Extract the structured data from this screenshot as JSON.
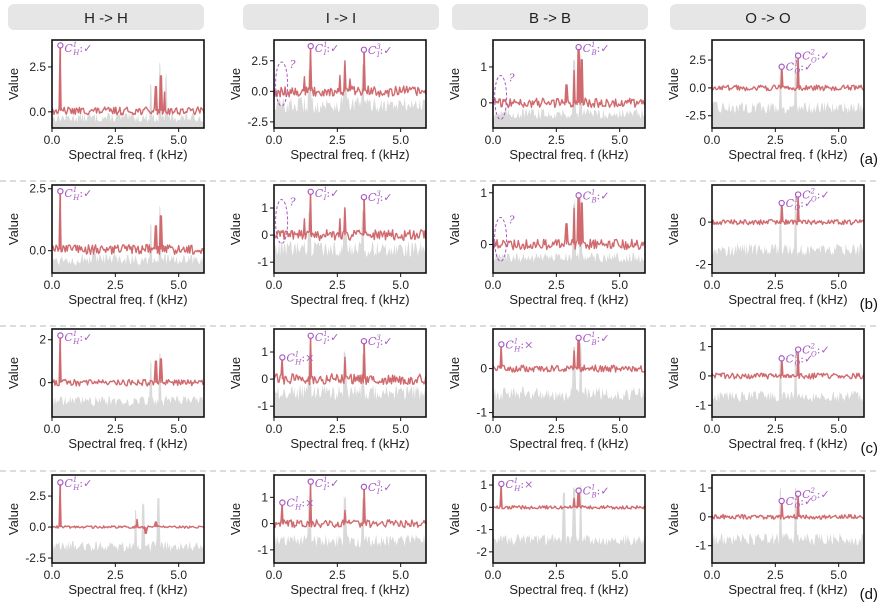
{
  "columns": [
    "H -> H",
    "I -> I",
    "B -> B",
    "O -> O"
  ],
  "rows": [
    "(a)",
    "(b)",
    "(c)",
    "(d)"
  ],
  "xlabel": "Spectral freq. f (kHz)",
  "ylabel": "Value",
  "colors": {
    "signal": "#d06a6e",
    "background": "#d9d9d9",
    "marker": "#a65bc2",
    "header_bg": "#e6e6e6",
    "divider": "#b8b8b8"
  },
  "chart_data": {
    "type": "line",
    "x_range_khz": [
      0,
      6
    ],
    "x_ticks": [
      0.0,
      2.5,
      5.0
    ],
    "x_tick_labels": [
      "0.0",
      "2.5",
      "5.0"
    ],
    "panels": [
      {
        "row": "(a)",
        "col": "H -> H",
        "ylim": [
          -0.9,
          4.0
        ],
        "yticks": [
          0.0,
          2.5
        ],
        "ytick_labels": [
          "0.0",
          "2.5"
        ],
        "baseline": 0.05,
        "noise": 0.22,
        "bgBase": -0.6,
        "bgAmp": 0.55,
        "peaks": [
          {
            "f": 0.33,
            "v": 3.7
          },
          {
            "f": 4.1,
            "v": 1.4
          },
          {
            "f": 4.3,
            "v": 2.0
          },
          {
            "f": 4.45,
            "v": 1.1
          }
        ],
        "bgPeaks": [
          {
            "f": 3.9,
            "v": 1.7
          },
          {
            "f": 4.25,
            "v": 3.2
          },
          {
            "f": 4.5,
            "v": 2.2
          }
        ],
        "annotations": [
          {
            "label": "C_H^1:✓",
            "f": 0.33,
            "v": 3.7
          }
        ],
        "guesses": []
      },
      {
        "row": "(a)",
        "col": "I -> I",
        "ylim": [
          -3.0,
          4.2
        ],
        "yticks": [
          -2.5,
          0.0,
          2.5
        ],
        "ytick_labels": [
          "-2.5",
          "0.0",
          "2.5"
        ],
        "baseline": 0.0,
        "noise": 0.45,
        "bgBase": -1.8,
        "bgAmp": 1.4,
        "peaks": [
          {
            "f": 1.2,
            "v": 1.2
          },
          {
            "f": 1.45,
            "v": 3.7
          },
          {
            "f": 2.6,
            "v": 1.3
          },
          {
            "f": 2.8,
            "v": 2.5
          },
          {
            "f": 3.0,
            "v": 1.0
          },
          {
            "f": 3.55,
            "v": 3.4
          }
        ],
        "bgPeaks": [
          {
            "f": 1.4,
            "v": 2.0
          },
          {
            "f": 2.8,
            "v": 2.5
          },
          {
            "f": 3.5,
            "v": 2.3
          }
        ],
        "annotations": [
          {
            "label": "C_I^1:✓",
            "f": 1.45,
            "v": 3.7
          },
          {
            "label": "C_I^3:✓",
            "f": 3.55,
            "v": 3.4
          }
        ],
        "guesses": [
          {
            "f": 0.3,
            "v": 0.6
          }
        ]
      },
      {
        "row": "(a)",
        "col": "B -> B",
        "ylim": [
          -0.7,
          1.75
        ],
        "yticks": [
          0,
          1
        ],
        "ytick_labels": [
          "0",
          "1"
        ],
        "baseline": 0.0,
        "noise": 0.13,
        "bgBase": -0.45,
        "bgAmp": 0.3,
        "peaks": [
          {
            "f": 2.9,
            "v": 0.5
          },
          {
            "f": 3.2,
            "v": 0.9
          },
          {
            "f": 3.38,
            "v": 1.55
          },
          {
            "f": 3.5,
            "v": 1.2
          }
        ],
        "bgPeaks": [
          {
            "f": 3.2,
            "v": 1.3
          },
          {
            "f": 3.45,
            "v": 1.6
          }
        ],
        "annotations": [
          {
            "label": "C_B^1:✓",
            "f": 3.38,
            "v": 1.55
          }
        ],
        "guesses": [
          {
            "f": 0.3,
            "v": 0.15
          }
        ]
      },
      {
        "row": "(a)",
        "col": "O -> O",
        "ylim": [
          -3.6,
          4.3
        ],
        "yticks": [
          -2.5,
          0.0,
          2.5
        ],
        "ytick_labels": [
          "-2.5",
          "0.0",
          "2.5"
        ],
        "baseline": 0.0,
        "noise": 0.25,
        "bgBase": -2.3,
        "bgAmp": 1.1,
        "peaks": [
          {
            "f": 2.75,
            "v": 1.9
          },
          {
            "f": 3.4,
            "v": 2.9
          }
        ],
        "bgPeaks": [
          {
            "f": 2.7,
            "v": 2.0
          },
          {
            "f": 3.3,
            "v": 3.5
          }
        ],
        "annotations": [
          {
            "label": "C_O^1:✓",
            "f": 2.75,
            "v": 1.9
          },
          {
            "label": "C_O^2:✓",
            "f": 3.4,
            "v": 2.9
          }
        ],
        "guesses": []
      },
      {
        "row": "(b)",
        "col": "H -> H",
        "ylim": [
          -0.9,
          2.65
        ],
        "yticks": [
          0.0,
          2.5
        ],
        "ytick_labels": [
          "0.0",
          "2.5"
        ],
        "baseline": 0.05,
        "noise": 0.2,
        "bgBase": -0.6,
        "bgAmp": 0.5,
        "peaks": [
          {
            "f": 0.33,
            "v": 2.4
          },
          {
            "f": 4.1,
            "v": 1.0
          },
          {
            "f": 4.3,
            "v": 1.4
          }
        ],
        "bgPeaks": [
          {
            "f": 3.9,
            "v": 1.2
          },
          {
            "f": 4.25,
            "v": 2.1
          }
        ],
        "annotations": [
          {
            "label": "C_H^1:✓",
            "f": 0.33,
            "v": 2.4
          }
        ],
        "guesses": []
      },
      {
        "row": "(b)",
        "col": "I -> I",
        "ylim": [
          -1.4,
          1.85
        ],
        "yticks": [
          -1,
          0,
          1
        ],
        "ytick_labels": [
          "-1",
          "0",
          "1"
        ],
        "baseline": 0.0,
        "noise": 0.2,
        "bgBase": -0.8,
        "bgAmp": 0.6,
        "peaks": [
          {
            "f": 1.2,
            "v": 0.6
          },
          {
            "f": 1.45,
            "v": 1.6
          },
          {
            "f": 2.6,
            "v": 0.6
          },
          {
            "f": 2.8,
            "v": 1.0
          },
          {
            "f": 3.55,
            "v": 1.4
          }
        ],
        "bgPeaks": [
          {
            "f": 1.4,
            "v": 1.0
          },
          {
            "f": 2.8,
            "v": 1.1
          },
          {
            "f": 3.5,
            "v": 1.0
          }
        ],
        "annotations": [
          {
            "label": "C_I^1:✓",
            "f": 1.45,
            "v": 1.6
          },
          {
            "label": "C_I^3:✓",
            "f": 3.55,
            "v": 1.4
          }
        ],
        "guesses": [
          {
            "f": 0.3,
            "v": 0.5
          }
        ]
      },
      {
        "row": "(b)",
        "col": "B -> B",
        "ylim": [
          -0.55,
          1.15
        ],
        "yticks": [
          0,
          1
        ],
        "ytick_labels": [
          "0",
          "1"
        ],
        "baseline": 0.0,
        "noise": 0.1,
        "bgBase": -0.35,
        "bgAmp": 0.2,
        "peaks": [
          {
            "f": 2.9,
            "v": 0.4
          },
          {
            "f": 3.2,
            "v": 0.7
          },
          {
            "f": 3.38,
            "v": 0.95
          },
          {
            "f": 3.5,
            "v": 0.8
          }
        ],
        "bgPeaks": [
          {
            "f": 3.2,
            "v": 0.9
          },
          {
            "f": 3.45,
            "v": 1.0
          }
        ],
        "annotations": [
          {
            "label": "C_B^1:✓",
            "f": 3.38,
            "v": 0.95
          }
        ],
        "guesses": [
          {
            "f": 0.3,
            "v": 0.1
          }
        ]
      },
      {
        "row": "(b)",
        "col": "O -> O",
        "ylim": [
          -2.4,
          1.75
        ],
        "yticks": [
          -2,
          0
        ],
        "ytick_labels": [
          "-2",
          "0"
        ],
        "baseline": 0.0,
        "noise": 0.12,
        "bgBase": -1.6,
        "bgAmp": 0.6,
        "peaks": [
          {
            "f": 2.75,
            "v": 0.9
          },
          {
            "f": 3.4,
            "v": 1.3
          }
        ],
        "bgPeaks": [
          {
            "f": 2.7,
            "v": 1.0
          },
          {
            "f": 3.3,
            "v": 1.5
          }
        ],
        "annotations": [
          {
            "label": "C_O^1:✓",
            "f": 2.75,
            "v": 0.9
          },
          {
            "label": "C_O^2:✓",
            "f": 3.4,
            "v": 1.3
          }
        ],
        "guesses": []
      },
      {
        "row": "(c)",
        "col": "H -> H",
        "ylim": [
          -1.6,
          2.5
        ],
        "yticks": [
          0,
          2
        ],
        "ytick_labels": [
          "0",
          "2"
        ],
        "baseline": 0.0,
        "noise": 0.15,
        "bgBase": -1.1,
        "bgAmp": 0.5,
        "peaks": [
          {
            "f": 0.33,
            "v": 2.2
          },
          {
            "f": 4.1,
            "v": 1.0
          },
          {
            "f": 4.3,
            "v": 1.1
          }
        ],
        "bgPeaks": [
          {
            "f": 3.9,
            "v": 1.0
          },
          {
            "f": 4.25,
            "v": 1.6
          }
        ],
        "annotations": [
          {
            "label": "C_H^1:✓",
            "f": 0.33,
            "v": 2.2
          }
        ],
        "guesses": []
      },
      {
        "row": "(c)",
        "col": "I -> I",
        "ylim": [
          -1.4,
          1.85
        ],
        "yticks": [
          -1,
          0,
          1
        ],
        "ytick_labels": [
          "-1",
          "0",
          "1"
        ],
        "baseline": 0.0,
        "noise": 0.2,
        "bgBase": -0.8,
        "bgAmp": 0.6,
        "peaks": [
          {
            "f": 0.33,
            "v": 0.8
          },
          {
            "f": 1.45,
            "v": 1.6
          },
          {
            "f": 2.8,
            "v": 0.8
          },
          {
            "f": 3.55,
            "v": 1.4
          }
        ],
        "bgPeaks": [
          {
            "f": 1.4,
            "v": 1.0
          },
          {
            "f": 2.8,
            "v": 1.1
          },
          {
            "f": 3.5,
            "v": 1.0
          }
        ],
        "annotations": [
          {
            "label": "C_H^1:×",
            "f": 0.33,
            "v": 0.8
          },
          {
            "label": "C_I^1:✓",
            "f": 1.45,
            "v": 1.6
          },
          {
            "label": "C_I^3:✓",
            "f": 3.55,
            "v": 1.4
          }
        ],
        "guesses": []
      },
      {
        "row": "(c)",
        "col": "B -> B",
        "ylim": [
          -1.1,
          0.9
        ],
        "yticks": [
          -1,
          0
        ],
        "ytick_labels": [
          "-1",
          "0"
        ],
        "baseline": 0.0,
        "noise": 0.08,
        "bgBase": -0.75,
        "bgAmp": 0.35,
        "peaks": [
          {
            "f": 0.33,
            "v": 0.55
          },
          {
            "f": 3.2,
            "v": 0.4
          },
          {
            "f": 3.38,
            "v": 0.7
          }
        ],
        "bgPeaks": [
          {
            "f": 3.2,
            "v": 0.6
          },
          {
            "f": 3.45,
            "v": 0.7
          }
        ],
        "annotations": [
          {
            "label": "C_H^1:×",
            "f": 0.33,
            "v": 0.55
          },
          {
            "label": "C_B^1:✓",
            "f": 3.38,
            "v": 0.7
          }
        ],
        "guesses": []
      },
      {
        "row": "(c)",
        "col": "O -> O",
        "ylim": [
          -1.4,
          1.6
        ],
        "yticks": [
          -1,
          0,
          1
        ],
        "ytick_labels": [
          "-1",
          "0",
          "1"
        ],
        "baseline": 0.0,
        "noise": 0.1,
        "bgBase": -0.9,
        "bgAmp": 0.4,
        "peaks": [
          {
            "f": 2.75,
            "v": 0.6
          },
          {
            "f": 3.4,
            "v": 0.9
          }
        ],
        "bgPeaks": [
          {
            "f": 2.7,
            "v": 0.8
          },
          {
            "f": 3.3,
            "v": 1.1
          }
        ],
        "annotations": [
          {
            "label": "C_O^1:✓",
            "f": 2.75,
            "v": 0.6
          },
          {
            "label": "C_O^2:✓",
            "f": 3.4,
            "v": 0.9
          }
        ],
        "guesses": []
      },
      {
        "row": "(d)",
        "col": "H -> H",
        "ylim": [
          -2.9,
          4.2
        ],
        "yticks": [
          -2.5,
          0.0,
          2.5
        ],
        "ytick_labels": [
          "-2.5",
          "0.0",
          "2.5"
        ],
        "baseline": 0.0,
        "noise": 0.1,
        "bgBase": -2.0,
        "bgAmp": 0.9,
        "peaks": [
          {
            "f": 0.33,
            "v": 3.6
          },
          {
            "f": 3.35,
            "v": 0.6
          },
          {
            "f": 3.7,
            "v": -0.5
          },
          {
            "f": 4.1,
            "v": 0.4
          }
        ],
        "bgPeaks": [
          {
            "f": 3.3,
            "v": 1.5
          },
          {
            "f": 3.6,
            "v": 2.2
          },
          {
            "f": 4.2,
            "v": 2.5
          }
        ],
        "annotations": [
          {
            "label": "C_H^1:✓",
            "f": 0.33,
            "v": 3.6
          }
        ],
        "guesses": []
      },
      {
        "row": "(d)",
        "col": "I -> I",
        "ylim": [
          -1.5,
          1.85
        ],
        "yticks": [
          -1,
          0,
          1
        ],
        "ytick_labels": [
          "-1",
          "0",
          "1"
        ],
        "baseline": 0.0,
        "noise": 0.15,
        "bgBase": -0.9,
        "bgAmp": 0.5,
        "peaks": [
          {
            "f": 0.33,
            "v": 0.8
          },
          {
            "f": 1.45,
            "v": 1.6
          },
          {
            "f": 2.8,
            "v": 0.5
          },
          {
            "f": 3.55,
            "v": 1.4
          }
        ],
        "bgPeaks": [
          {
            "f": 1.4,
            "v": 1.0
          },
          {
            "f": 2.8,
            "v": 1.1
          },
          {
            "f": 3.5,
            "v": 1.0
          }
        ],
        "annotations": [
          {
            "label": "C_H^1:×",
            "f": 0.33,
            "v": 0.8
          },
          {
            "label": "C_I^1:✓",
            "f": 1.45,
            "v": 1.6
          },
          {
            "label": "C_I^3:✓",
            "f": 3.55,
            "v": 1.4
          }
        ],
        "guesses": []
      },
      {
        "row": "(d)",
        "col": "B -> B",
        "ylim": [
          -2.5,
          1.45
        ],
        "yticks": [
          -2,
          -1,
          0,
          1
        ],
        "ytick_labels": [
          "-2",
          "-1",
          "0",
          "1"
        ],
        "baseline": 0.0,
        "noise": 0.08,
        "bgBase": -1.7,
        "bgAmp": 0.5,
        "peaks": [
          {
            "f": 0.33,
            "v": 1.05
          },
          {
            "f": 3.2,
            "v": 0.4
          },
          {
            "f": 3.38,
            "v": 0.75
          }
        ],
        "bgPeaks": [
          {
            "f": 2.8,
            "v": 0.7
          },
          {
            "f": 3.2,
            "v": 1.0
          },
          {
            "f": 3.45,
            "v": 1.1
          }
        ],
        "annotations": [
          {
            "label": "C_H^1:×",
            "f": 0.33,
            "v": 1.05
          },
          {
            "label": "C_B^1:✓",
            "f": 3.38,
            "v": 0.75
          }
        ],
        "guesses": []
      },
      {
        "row": "(d)",
        "col": "O -> O",
        "ylim": [
          -1.6,
          1.45
        ],
        "yticks": [
          -1,
          0,
          1
        ],
        "ytick_labels": [
          "-1",
          "0",
          "1"
        ],
        "baseline": 0.0,
        "noise": 0.08,
        "bgBase": -1.0,
        "bgAmp": 0.45,
        "peaks": [
          {
            "f": 2.75,
            "v": 0.55
          },
          {
            "f": 3.4,
            "v": 0.8
          }
        ],
        "bgPeaks": [
          {
            "f": 2.7,
            "v": 1.1
          },
          {
            "f": 3.3,
            "v": 1.2
          }
        ],
        "annotations": [
          {
            "label": "C_O^1:✓",
            "f": 2.75,
            "v": 0.55
          },
          {
            "label": "C_O^2:✓",
            "f": 3.4,
            "v": 0.8
          }
        ],
        "guesses": []
      }
    ]
  }
}
